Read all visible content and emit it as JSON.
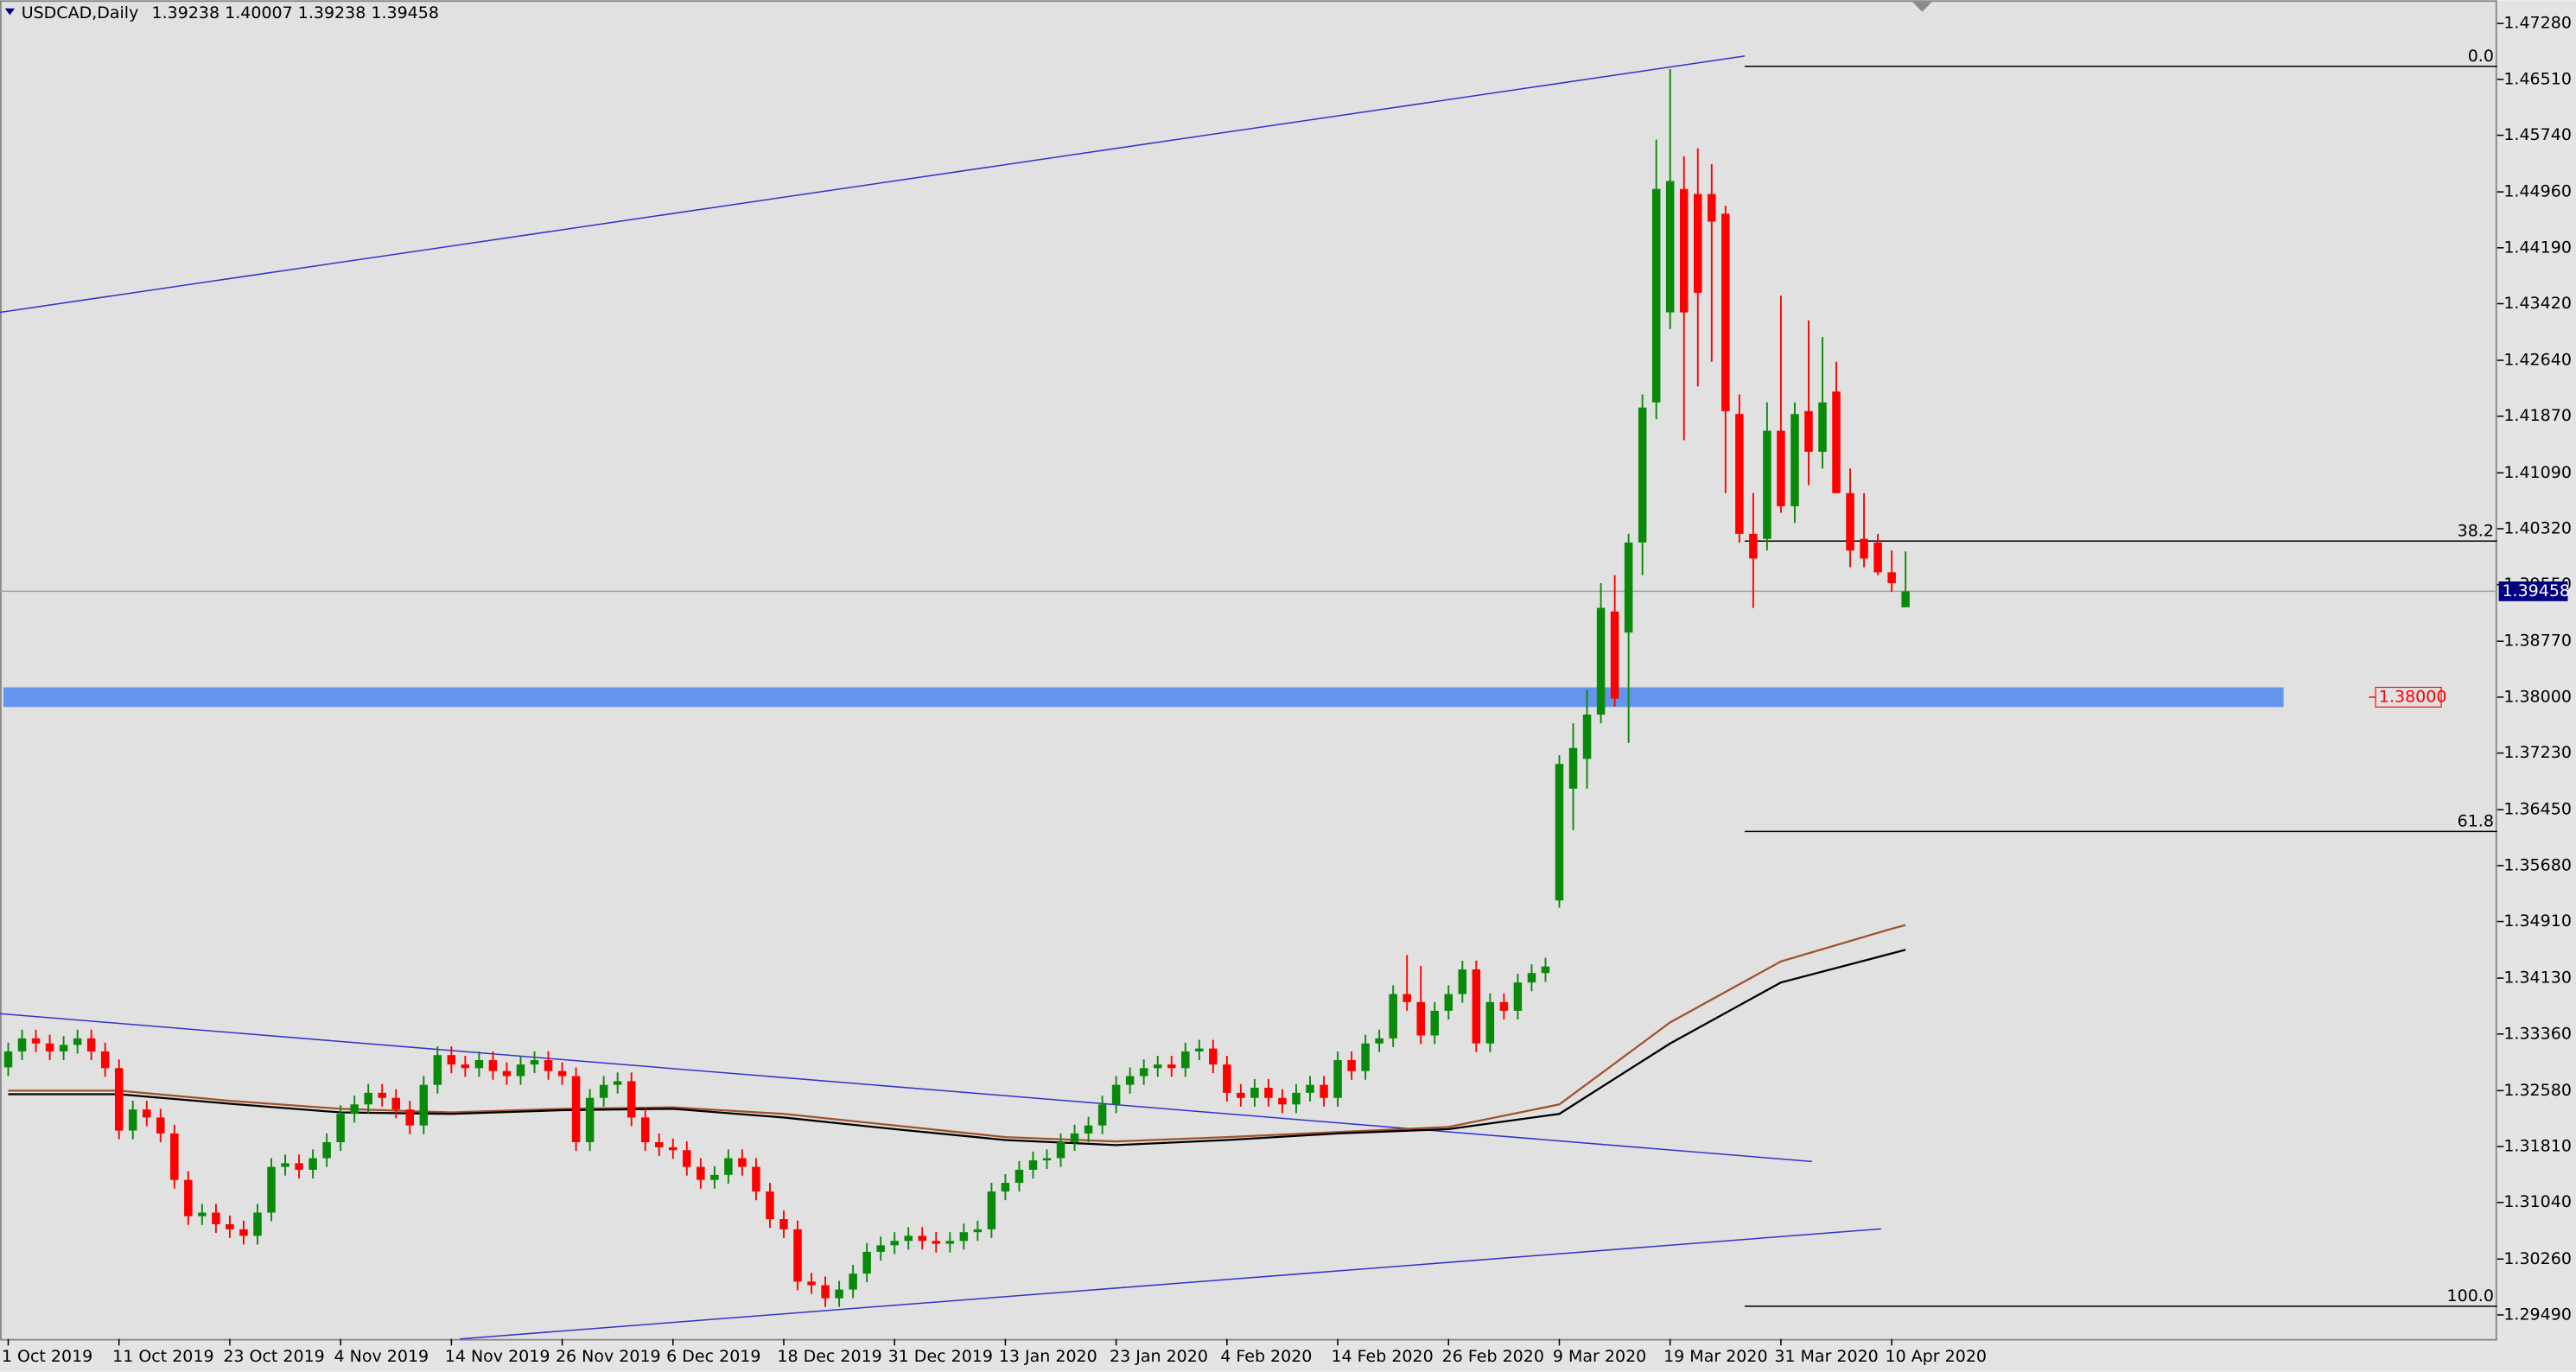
{
  "chart_data": {
    "type": "candlestick",
    "title": "USDCAD,Daily",
    "quote": "1.39238 1.40007 1.39238 1.39458",
    "categories": [
      "1 Oct 2019",
      null,
      null,
      null,
      null,
      null,
      null,
      null,
      "11 Oct 2019",
      null,
      null,
      null,
      null,
      null,
      null,
      null,
      "23 Oct 2019",
      null,
      null,
      null,
      null,
      null,
      null,
      null,
      "4 Nov 2019",
      null,
      null,
      null,
      null,
      null,
      null,
      null,
      "14 Nov 2019",
      null,
      null,
      null,
      null,
      null,
      null,
      null,
      "26 Nov 2019",
      null,
      null,
      null,
      null,
      null,
      null,
      null,
      "6 Dec 2019",
      null,
      null,
      null,
      null,
      null,
      null,
      null,
      "18 Dec 2019",
      null,
      null,
      null,
      null,
      null,
      null,
      null,
      "31 Dec 2019",
      null,
      null,
      null,
      null,
      null,
      null,
      null,
      "13 Jan 2020",
      null,
      null,
      null,
      null,
      null,
      null,
      null,
      "23 Jan 2020",
      null,
      null,
      null,
      null,
      null,
      null,
      null,
      "4 Feb 2020",
      null,
      null,
      null,
      null,
      null,
      null,
      null,
      "14 Feb 2020",
      null,
      null,
      null,
      null,
      null,
      null,
      null,
      "26 Feb 2020",
      null,
      null,
      null,
      null,
      null,
      null,
      null,
      "9 Mar 2020",
      null,
      null,
      null,
      null,
      null,
      null,
      null,
      "19 Mar 2020",
      null,
      null,
      null,
      null,
      null,
      null,
      null,
      "31 Mar 2020",
      null,
      null,
      null,
      null,
      null,
      null,
      null,
      "10 Apr 2020",
      null
    ],
    "open": [
      1.329,
      1.3312,
      1.333,
      1.3323,
      1.3312,
      1.3321,
      1.333,
      1.3312,
      1.3289,
      1.3203,
      1.3232,
      1.3221,
      1.3199,
      1.3135,
      1.3085,
      1.309,
      1.3074,
      1.3067,
      1.3058,
      1.309,
      1.3153,
      1.3158,
      1.3149,
      1.3165,
      1.3187,
      1.3226,
      1.3239,
      1.3255,
      1.3248,
      1.3232,
      1.321,
      1.3266,
      1.3307,
      1.3294,
      1.3289,
      1.33,
      1.3285,
      1.3278,
      1.3294,
      1.33,
      1.3285,
      1.3278,
      1.3187,
      1.3248,
      1.3266,
      1.3271,
      1.3221,
      1.3187,
      1.318,
      1.3176,
      1.3153,
      1.3135,
      1.3142,
      1.3165,
      1.3153,
      1.3119,
      1.3081,
      1.3067,
      1.2995,
      1.299,
      1.2972,
      1.2984,
      1.3006,
      1.3036,
      1.3045,
      1.3051,
      1.3058,
      1.3051,
      1.3047,
      1.3051,
      1.3063,
      1.3067,
      1.3119,
      1.3131,
      1.3149,
      1.3162,
      1.3165,
      1.3187,
      1.3199,
      1.321,
      1.3239,
      1.3266,
      1.3278,
      1.3289,
      1.3294,
      1.3289,
      1.3312,
      1.3316,
      1.3294,
      1.3255,
      1.3248,
      1.3262,
      1.3248,
      1.3239,
      1.3255,
      1.3266,
      1.3248,
      1.33,
      1.3285,
      1.3323,
      1.333,
      1.3391,
      1.338,
      1.3334,
      1.3368,
      1.3391,
      1.3425,
      1.3323,
      1.338,
      1.3368,
      1.3407,
      1.342,
      1.352,
      1.3674,
      1.3715,
      1.3776,
      1.3918,
      1.3889,
      1.4013,
      1.4206,
      1.433,
      1.45,
      1.4493,
      1.4493,
      1.4466,
      1.419,
      1.4025,
      1.4018,
      1.4167,
      1.4063,
      1.4194,
      1.4138,
      1.4221,
      1.4081,
      1.4018,
      1.4013,
      1.3972,
      1.39238
    ],
    "high": [
      1.3324,
      1.3342,
      1.3342,
      1.3335,
      1.3333,
      1.3342,
      1.3342,
      1.3324,
      1.3301,
      1.3244,
      1.3244,
      1.3233,
      1.3211,
      1.3147,
      1.3102,
      1.3102,
      1.3086,
      1.3079,
      1.3102,
      1.3165,
      1.317,
      1.317,
      1.3177,
      1.3199,
      1.3238,
      1.3251,
      1.3267,
      1.3267,
      1.326,
      1.3244,
      1.3278,
      1.3319,
      1.3319,
      1.3306,
      1.3312,
      1.3312,
      1.3297,
      1.3306,
      1.3312,
      1.3312,
      1.3297,
      1.329,
      1.326,
      1.3278,
      1.3283,
      1.3283,
      1.3233,
      1.3199,
      1.3192,
      1.3188,
      1.3165,
      1.3154,
      1.3177,
      1.3177,
      1.3165,
      1.3131,
      1.3093,
      1.3079,
      1.3007,
      1.3002,
      1.2996,
      1.3018,
      1.3048,
      1.3057,
      1.3063,
      1.307,
      1.307,
      1.3063,
      1.3063,
      1.3075,
      1.3079,
      1.3131,
      1.3143,
      1.3161,
      1.3174,
      1.3177,
      1.3199,
      1.3211,
      1.3222,
      1.3251,
      1.3278,
      1.329,
      1.3301,
      1.3306,
      1.3306,
      1.3324,
      1.3328,
      1.3328,
      1.3306,
      1.3267,
      1.3274,
      1.3274,
      1.326,
      1.3267,
      1.3278,
      1.3278,
      1.3312,
      1.3312,
      1.3335,
      1.3342,
      1.3403,
      1.3445,
      1.343,
      1.338,
      1.3403,
      1.3437,
      1.3437,
      1.3392,
      1.3392,
      1.3419,
      1.3432,
      1.3441,
      1.372,
      1.3764,
      1.381,
      1.3957,
      1.3968,
      1.4025,
      1.4217,
      1.4568,
      1.4665,
      1.4545,
      1.4556,
      1.4534,
      1.4477,
      1.4217,
      1.4081,
      1.4206,
      1.4353,
      1.4206,
      1.4319,
      1.4296,
      1.4262,
      1.4115,
      1.4081,
      1.4025,
      1.4002,
      1.40007
    ],
    "low": [
      1.3278,
      1.33,
      1.3311,
      1.33,
      1.33,
      1.3309,
      1.33,
      1.3277,
      1.3191,
      1.3191,
      1.3209,
      1.3187,
      1.3123,
      1.3073,
      1.3073,
      1.3062,
      1.3055,
      1.3046,
      1.3046,
      1.3078,
      1.3141,
      1.3137,
      1.3137,
      1.3153,
      1.3175,
      1.3214,
      1.3227,
      1.3236,
      1.322,
      1.3198,
      1.3198,
      1.3254,
      1.3282,
      1.3277,
      1.3277,
      1.3273,
      1.3266,
      1.3266,
      1.3282,
      1.3273,
      1.3266,
      1.3175,
      1.3175,
      1.3236,
      1.3254,
      1.3209,
      1.3175,
      1.3168,
      1.3164,
      1.3141,
      1.3123,
      1.3123,
      1.313,
      1.3141,
      1.3107,
      1.3069,
      1.3055,
      1.2983,
      1.2978,
      1.296,
      1.296,
      1.2972,
      1.2994,
      1.3024,
      1.3033,
      1.3039,
      1.3039,
      1.3035,
      1.3035,
      1.3039,
      1.3051,
      1.3055,
      1.3107,
      1.3119,
      1.3137,
      1.315,
      1.3153,
      1.3175,
      1.3187,
      1.3198,
      1.3227,
      1.3254,
      1.3266,
      1.3277,
      1.3277,
      1.3277,
      1.33,
      1.3282,
      1.3243,
      1.3236,
      1.3236,
      1.3236,
      1.3227,
      1.3227,
      1.3243,
      1.3236,
      1.3236,
      1.3273,
      1.3273,
      1.3311,
      1.3318,
      1.3368,
      1.3322,
      1.3322,
      1.3356,
      1.3379,
      1.3311,
      1.3311,
      1.3356,
      1.3356,
      1.3395,
      1.3408,
      1.351,
      1.3617,
      1.3674,
      1.3764,
      1.3787,
      1.3737,
      1.3968,
      1.4183,
      1.4307,
      1.4154,
      1.4228,
      1.4262,
      1.4081,
      1.4013,
      1.3923,
      1.4002,
      1.4054,
      1.404,
      1.4092,
      1.4115,
      1.4081,
      1.3979,
      1.3979,
      1.3968,
      1.3945,
      1.39238
    ],
    "close": [
      1.3312,
      1.333,
      1.3323,
      1.3312,
      1.3321,
      1.333,
      1.3312,
      1.3289,
      1.3203,
      1.3232,
      1.3221,
      1.3199,
      1.3135,
      1.3085,
      1.309,
      1.3074,
      1.3067,
      1.3058,
      1.309,
      1.3153,
      1.3158,
      1.3149,
      1.3165,
      1.3187,
      1.3226,
      1.3239,
      1.3255,
      1.3248,
      1.3232,
      1.321,
      1.3266,
      1.3307,
      1.3294,
      1.3289,
      1.33,
      1.3285,
      1.3278,
      1.3294,
      1.33,
      1.3285,
      1.3278,
      1.3187,
      1.3248,
      1.3266,
      1.3271,
      1.3221,
      1.3187,
      1.318,
      1.3176,
      1.3153,
      1.3135,
      1.3142,
      1.3165,
      1.3153,
      1.3119,
      1.3081,
      1.3067,
      1.2995,
      1.299,
      1.2972,
      1.2984,
      1.3006,
      1.3036,
      1.3045,
      1.3051,
      1.3058,
      1.3051,
      1.3047,
      1.3051,
      1.3063,
      1.3067,
      1.3119,
      1.3131,
      1.3149,
      1.3162,
      1.3165,
      1.3187,
      1.3199,
      1.321,
      1.3239,
      1.3266,
      1.3278,
      1.3289,
      1.3294,
      1.3289,
      1.3312,
      1.3316,
      1.3294,
      1.3255,
      1.3248,
      1.3262,
      1.3248,
      1.3239,
      1.3255,
      1.3266,
      1.3248,
      1.33,
      1.3285,
      1.3323,
      1.333,
      1.3391,
      1.338,
      1.3334,
      1.3368,
      1.3391,
      1.3425,
      1.3323,
      1.338,
      1.3368,
      1.3407,
      1.342,
      1.3429,
      1.3708,
      1.373,
      1.3776,
      1.3923,
      1.3798,
      1.4013,
      1.4199,
      1.45,
      1.4511,
      1.433,
      1.4357,
      1.4455,
      1.4194,
      1.4025,
      1.3991,
      1.4167,
      1.4063,
      1.419,
      1.4138,
      1.4206,
      1.4081,
      1.4002,
      1.3991,
      1.3972,
      1.3957,
      1.39458
    ],
    "up_color": "#0a8a0a",
    "down_color": "#ff0000",
    "moving_averages": [
      {
        "color": "#a0522d",
        "x": [
          0,
          8,
          16,
          24,
          32,
          40,
          48,
          56,
          64,
          72,
          80,
          88,
          96,
          104,
          112,
          120,
          128,
          136,
          137
        ],
        "values": [
          1.3258,
          1.3258,
          1.3244,
          1.3233,
          1.3228,
          1.3233,
          1.3235,
          1.3226,
          1.321,
          1.3194,
          1.3188,
          1.3194,
          1.3201,
          1.3208,
          1.3239,
          1.3352,
          1.3436,
          1.3481,
          1.3486
        ]
      },
      {
        "color": "#000000",
        "x": [
          0,
          8,
          16,
          24,
          32,
          40,
          48,
          56,
          64,
          72,
          80,
          88,
          96,
          104,
          112,
          120,
          128,
          136,
          137
        ],
        "values": [
          1.3253,
          1.3253,
          1.324,
          1.3228,
          1.3226,
          1.3231,
          1.3233,
          1.3221,
          1.3205,
          1.319,
          1.3183,
          1.319,
          1.3199,
          1.3205,
          1.3226,
          1.3323,
          1.3407,
          1.3447,
          1.3452
        ]
      }
    ],
    "fib_levels": [
      {
        "value": 1.4669,
        "label": "0.0"
      },
      {
        "value": 1.4015,
        "label": "38.2"
      },
      {
        "value": 1.3615,
        "label": "61.8"
      },
      {
        "value": 1.2961,
        "label": "100.0"
      }
    ],
    "current_price": {
      "value": 1.39458,
      "label": "1.39458"
    },
    "support_level": {
      "value": 1.38,
      "label": "1.38000"
    },
    "ylim": [
      1.2916,
      1.476
    ],
    "yticks": [
      {
        "value": 1.2949,
        "label": "1.29490"
      },
      {
        "value": 1.3026,
        "label": "1.30260"
      },
      {
        "value": 1.3104,
        "label": "1.31040"
      },
      {
        "value": 1.3181,
        "label": "1.31810"
      },
      {
        "value": 1.3258,
        "label": "1.32580"
      },
      {
        "value": 1.3336,
        "label": "1.33360"
      },
      {
        "value": 1.3413,
        "label": "1.34130"
      },
      {
        "value": 1.3491,
        "label": "1.34910"
      },
      {
        "value": 1.3568,
        "label": "1.35680"
      },
      {
        "value": 1.3645,
        "label": "1.36450"
      },
      {
        "value": 1.3723,
        "label": "1.37230"
      },
      {
        "value": 1.38,
        "label": "1.38000"
      },
      {
        "value": 1.3877,
        "label": "1.38770"
      },
      {
        "value": 1.3955,
        "label": "1.39550"
      },
      {
        "value": 1.4032,
        "label": "1.40320"
      },
      {
        "value": 1.4109,
        "label": "1.41090"
      },
      {
        "value": 1.4187,
        "label": "1.41870"
      },
      {
        "value": 1.4264,
        "label": "1.42640"
      },
      {
        "value": 1.4342,
        "label": "1.43420"
      },
      {
        "value": 1.4419,
        "label": "1.44190"
      },
      {
        "value": 1.4496,
        "label": "1.44960"
      },
      {
        "value": 1.4574,
        "label": "1.45740"
      },
      {
        "value": 1.4651,
        "label": "1.46510"
      },
      {
        "value": 1.4728,
        "label": "1.47280"
      }
    ]
  }
}
